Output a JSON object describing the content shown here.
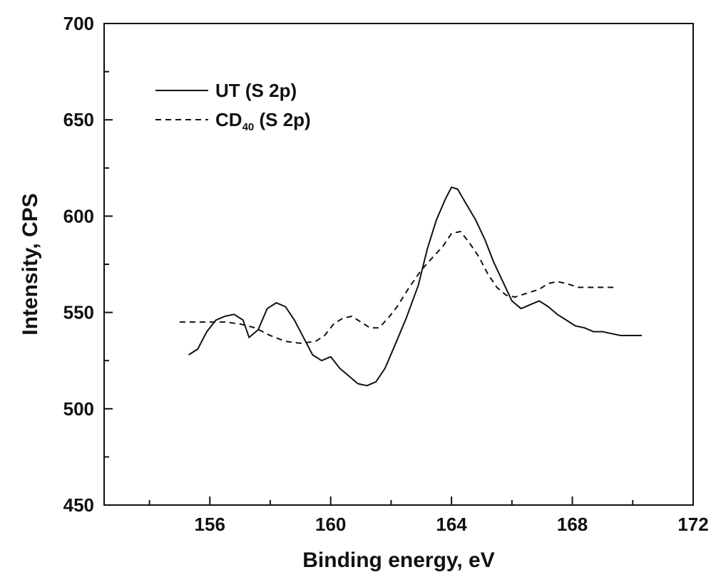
{
  "chart_data": {
    "type": "line",
    "xlabel": "Binding energy, eV",
    "ylabel": "Intensity, CPS",
    "xlim": [
      152.5,
      172
    ],
    "ylim": [
      450,
      700
    ],
    "x_ticks": [
      156,
      160,
      164,
      168,
      172
    ],
    "y_ticks": [
      450,
      500,
      550,
      600,
      650,
      700
    ],
    "grid": false,
    "legend_position": "top-left",
    "legend": [
      {
        "main": "UT (S 2p)",
        "sub": "",
        "tail": "",
        "style": "solid"
      },
      {
        "main": "CD",
        "sub": "40",
        "tail": " (S 2p)",
        "style": "dashed"
      }
    ],
    "series": [
      {
        "name": "UT (S 2p)",
        "style": "solid",
        "x": [
          155.3,
          155.6,
          155.9,
          156.2,
          156.5,
          156.8,
          157.1,
          157.3,
          157.6,
          157.9,
          158.2,
          158.5,
          158.8,
          159.1,
          159.4,
          159.7,
          160.0,
          160.3,
          160.6,
          160.9,
          161.2,
          161.5,
          161.8,
          162.1,
          162.5,
          162.9,
          163.2,
          163.5,
          163.8,
          164.0,
          164.2,
          164.5,
          164.8,
          165.1,
          165.4,
          165.7,
          166.0,
          166.3,
          166.6,
          166.9,
          167.2,
          167.5,
          167.8,
          168.1,
          168.4,
          168.7,
          169.0,
          169.3,
          169.6,
          170.0,
          170.3
        ],
        "y": [
          528,
          531,
          540,
          546,
          548,
          549,
          546,
          537,
          541,
          552,
          555,
          553,
          546,
          537,
          528,
          525,
          527,
          521,
          517,
          513,
          512,
          514,
          521,
          532,
          547,
          564,
          583,
          598,
          609,
          615,
          614,
          606,
          598,
          588,
          576,
          566,
          556,
          552,
          554,
          556,
          553,
          549,
          546,
          543,
          542,
          540,
          540,
          539,
          538,
          538,
          538
        ]
      },
      {
        "name": "CD40 (S 2p)",
        "style": "dashed",
        "x": [
          155.0,
          155.5,
          156.0,
          156.5,
          157.0,
          157.5,
          158.0,
          158.5,
          159.0,
          159.5,
          159.8,
          160.1,
          160.4,
          160.7,
          161.0,
          161.3,
          161.6,
          161.9,
          162.2,
          162.6,
          163.0,
          163.4,
          163.7,
          164.0,
          164.3,
          164.6,
          164.9,
          165.2,
          165.5,
          165.8,
          166.1,
          166.5,
          166.9,
          167.2,
          167.5,
          167.8,
          168.2,
          168.6,
          169.0,
          169.4
        ],
        "y": [
          545,
          545,
          545,
          545,
          544,
          542,
          538,
          535,
          534,
          535,
          538,
          544,
          547,
          548,
          545,
          542,
          542,
          547,
          553,
          563,
          572,
          579,
          584,
          591,
          592,
          586,
          579,
          570,
          563,
          559,
          558,
          560,
          562,
          565,
          566,
          565,
          563,
          563,
          563,
          563
        ]
      }
    ]
  }
}
